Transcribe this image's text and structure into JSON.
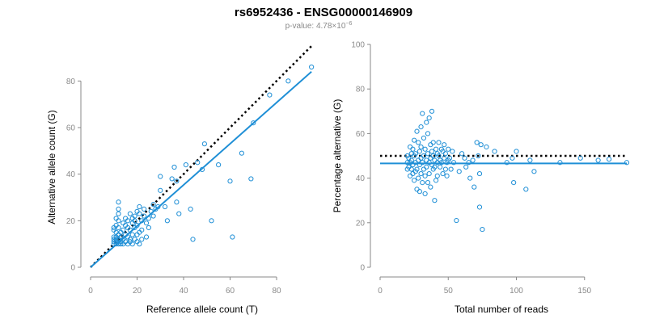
{
  "title": "rs6952436 - ENSG00000146909",
  "subtitle": {
    "prefix": "p-value: 4.78×10",
    "exponent": "−6"
  },
  "colors": {
    "points": "#1f8fd6",
    "fit_line": "#1f8fd6",
    "reference_line": "#000000",
    "axis": "#8a8a8a"
  },
  "chart_data": [
    {
      "type": "scatter",
      "xlabel": "Reference allele count (T)",
      "ylabel": "Alternative allele count (G)",
      "xlim": [
        0,
        96
      ],
      "ylim": [
        0,
        86
      ],
      "xticks": [
        0,
        20,
        40,
        60,
        80
      ],
      "yticks": [
        0,
        20,
        40,
        60,
        80
      ],
      "grid": false,
      "reference_line": {
        "style": "dotted",
        "points": [
          [
            0,
            0
          ],
          [
            95,
            95
          ]
        ]
      },
      "fit_line": {
        "style": "solid",
        "points": [
          [
            0,
            0
          ],
          [
            95,
            84
          ]
        ]
      },
      "points": [
        [
          95,
          86
        ],
        [
          85,
          80
        ],
        [
          77,
          74
        ],
        [
          70,
          62
        ],
        [
          69,
          38
        ],
        [
          65,
          49
        ],
        [
          61,
          13
        ],
        [
          60,
          37
        ],
        [
          55,
          44
        ],
        [
          52,
          20
        ],
        [
          49,
          53
        ],
        [
          48,
          42
        ],
        [
          46,
          45
        ],
        [
          44,
          12
        ],
        [
          43,
          25
        ],
        [
          41,
          44
        ],
        [
          38,
          23
        ],
        [
          37,
          28
        ],
        [
          37,
          37
        ],
        [
          36,
          43
        ],
        [
          35,
          38
        ],
        [
          33,
          20
        ],
        [
          32,
          26
        ],
        [
          30,
          39
        ],
        [
          30,
          33
        ],
        [
          29,
          26
        ],
        [
          28,
          25
        ],
        [
          27,
          22
        ],
        [
          27,
          27
        ],
        [
          26,
          24
        ],
        [
          25,
          21
        ],
        [
          25,
          17
        ],
        [
          24,
          13
        ],
        [
          24,
          19
        ],
        [
          23,
          25
        ],
        [
          23,
          22
        ],
        [
          22,
          12
        ],
        [
          22,
          16
        ],
        [
          22,
          20
        ],
        [
          21,
          26
        ],
        [
          21,
          23
        ],
        [
          21,
          15
        ],
        [
          21,
          10
        ],
        [
          20,
          18
        ],
        [
          20,
          14
        ],
        [
          20,
          11
        ],
        [
          20,
          24
        ],
        [
          19,
          22
        ],
        [
          19,
          17
        ],
        [
          19,
          12
        ],
        [
          19,
          20
        ],
        [
          18,
          10
        ],
        [
          18,
          14
        ],
        [
          18,
          19
        ],
        [
          18,
          21
        ],
        [
          17,
          23
        ],
        [
          17,
          16
        ],
        [
          17,
          12
        ],
        [
          17,
          11
        ],
        [
          16,
          20
        ],
        [
          16,
          17
        ],
        [
          16,
          13
        ],
        [
          16,
          10
        ],
        [
          15,
          21
        ],
        [
          15,
          18
        ],
        [
          15,
          14
        ],
        [
          15,
          11
        ],
        [
          14,
          16
        ],
        [
          14,
          12
        ],
        [
          14,
          10
        ],
        [
          14,
          19
        ],
        [
          13,
          13
        ],
        [
          13,
          15
        ],
        [
          13,
          10
        ],
        [
          13,
          11
        ],
        [
          12,
          12
        ],
        [
          12,
          10
        ],
        [
          12,
          14
        ],
        [
          12,
          17
        ],
        [
          12,
          20
        ],
        [
          12,
          23
        ],
        [
          12,
          25
        ],
        [
          12,
          28
        ],
        [
          11,
          10
        ],
        [
          11,
          11
        ],
        [
          11,
          12
        ],
        [
          11,
          13
        ],
        [
          11,
          15
        ],
        [
          11,
          18
        ],
        [
          11,
          21
        ],
        [
          10,
          10
        ],
        [
          10,
          11
        ],
        [
          10,
          13
        ],
        [
          10,
          16
        ],
        [
          10,
          17
        ],
        [
          10,
          12
        ]
      ]
    },
    {
      "type": "scatter",
      "xlabel": "Total number of reads",
      "ylabel": "Percentage alternative (G)",
      "xlim": [
        0,
        181
      ],
      "ylim": [
        0,
        100
      ],
      "xticks": [
        0,
        50,
        100,
        150
      ],
      "yticks": [
        0,
        20,
        40,
        60,
        80,
        100
      ],
      "grid": false,
      "reference_line": {
        "style": "dotted",
        "points": [
          [
            0,
            50
          ],
          [
            181,
            50
          ]
        ]
      },
      "fit_line": {
        "style": "solid",
        "points": [
          [
            0,
            46.6
          ],
          [
            181,
            46.6
          ]
        ]
      },
      "points": [
        [
          181,
          47
        ],
        [
          168,
          48.5
        ],
        [
          160,
          48
        ],
        [
          147,
          49
        ],
        [
          132,
          47
        ],
        [
          113,
          43
        ],
        [
          110,
          48
        ],
        [
          107,
          35
        ],
        [
          100,
          52
        ],
        [
          98,
          38
        ],
        [
          97,
          49
        ],
        [
          93,
          47
        ],
        [
          84,
          52
        ],
        [
          78,
          54
        ],
        [
          75,
          17
        ],
        [
          74,
          55
        ],
        [
          73,
          27
        ],
        [
          73,
          42
        ],
        [
          72,
          50
        ],
        [
          71,
          56
        ],
        [
          69,
          36
        ],
        [
          68,
          48
        ],
        [
          66,
          40
        ],
        [
          65,
          47
        ],
        [
          63,
          45
        ],
        [
          62,
          49
        ],
        [
          60,
          51
        ],
        [
          58,
          43
        ],
        [
          56,
          21
        ],
        [
          54,
          47
        ],
        [
          53,
          52
        ],
        [
          52,
          44
        ],
        [
          51,
          49
        ],
        [
          50,
          48
        ],
        [
          50,
          53
        ],
        [
          49,
          41
        ],
        [
          49,
          47
        ],
        [
          48,
          51
        ],
        [
          48,
          44
        ],
        [
          47,
          55
        ],
        [
          47,
          49
        ],
        [
          46,
          42
        ],
        [
          46,
          52
        ],
        [
          45,
          47
        ],
        [
          45,
          53
        ],
        [
          44,
          48
        ],
        [
          44,
          45
        ],
        [
          43,
          56
        ],
        [
          43,
          50
        ],
        [
          42,
          41
        ],
        [
          42,
          47
        ],
        [
          42,
          51
        ],
        [
          41,
          53
        ],
        [
          41,
          39
        ],
        [
          40,
          45
        ],
        [
          40,
          48
        ],
        [
          40,
          30
        ],
        [
          39,
          56
        ],
        [
          39,
          50
        ],
        [
          39,
          44
        ],
        [
          38,
          70
        ],
        [
          38,
          52
        ],
        [
          38,
          46
        ],
        [
          37,
          36
        ],
        [
          37,
          49
        ],
        [
          37,
          55
        ],
        [
          36,
          67
        ],
        [
          36,
          42
        ],
        [
          36,
          47
        ],
        [
          35,
          51
        ],
        [
          35,
          60
        ],
        [
          35,
          38
        ],
        [
          34,
          45
        ],
        [
          34,
          48
        ],
        [
          34,
          65
        ],
        [
          33,
          53
        ],
        [
          33,
          41
        ],
        [
          33,
          33
        ],
        [
          32,
          58
        ],
        [
          32,
          44
        ],
        [
          32,
          50
        ],
        [
          31,
          69
        ],
        [
          31,
          47
        ],
        [
          31,
          38
        ],
        [
          30,
          54
        ],
        [
          30,
          42
        ],
        [
          30,
          49
        ],
        [
          30,
          63
        ],
        [
          29,
          34
        ],
        [
          29,
          46
        ],
        [
          29,
          52
        ],
        [
          28,
          56
        ],
        [
          28,
          40
        ],
        [
          28,
          48
        ],
        [
          27,
          61
        ],
        [
          27,
          44
        ],
        [
          27,
          35
        ],
        [
          26,
          51
        ],
        [
          26,
          43
        ],
        [
          26,
          47
        ],
        [
          25,
          57
        ],
        [
          25,
          39
        ],
        [
          25,
          50
        ],
        [
          24,
          46
        ],
        [
          24,
          42
        ],
        [
          24,
          53
        ],
        [
          23,
          48
        ],
        [
          23,
          44
        ],
        [
          23,
          51
        ],
        [
          22,
          47
        ],
        [
          22,
          54
        ],
        [
          22,
          41
        ],
        [
          21,
          49
        ],
        [
          21,
          45
        ],
        [
          20,
          50
        ],
        [
          20,
          44
        ],
        [
          20,
          47
        ]
      ]
    }
  ]
}
